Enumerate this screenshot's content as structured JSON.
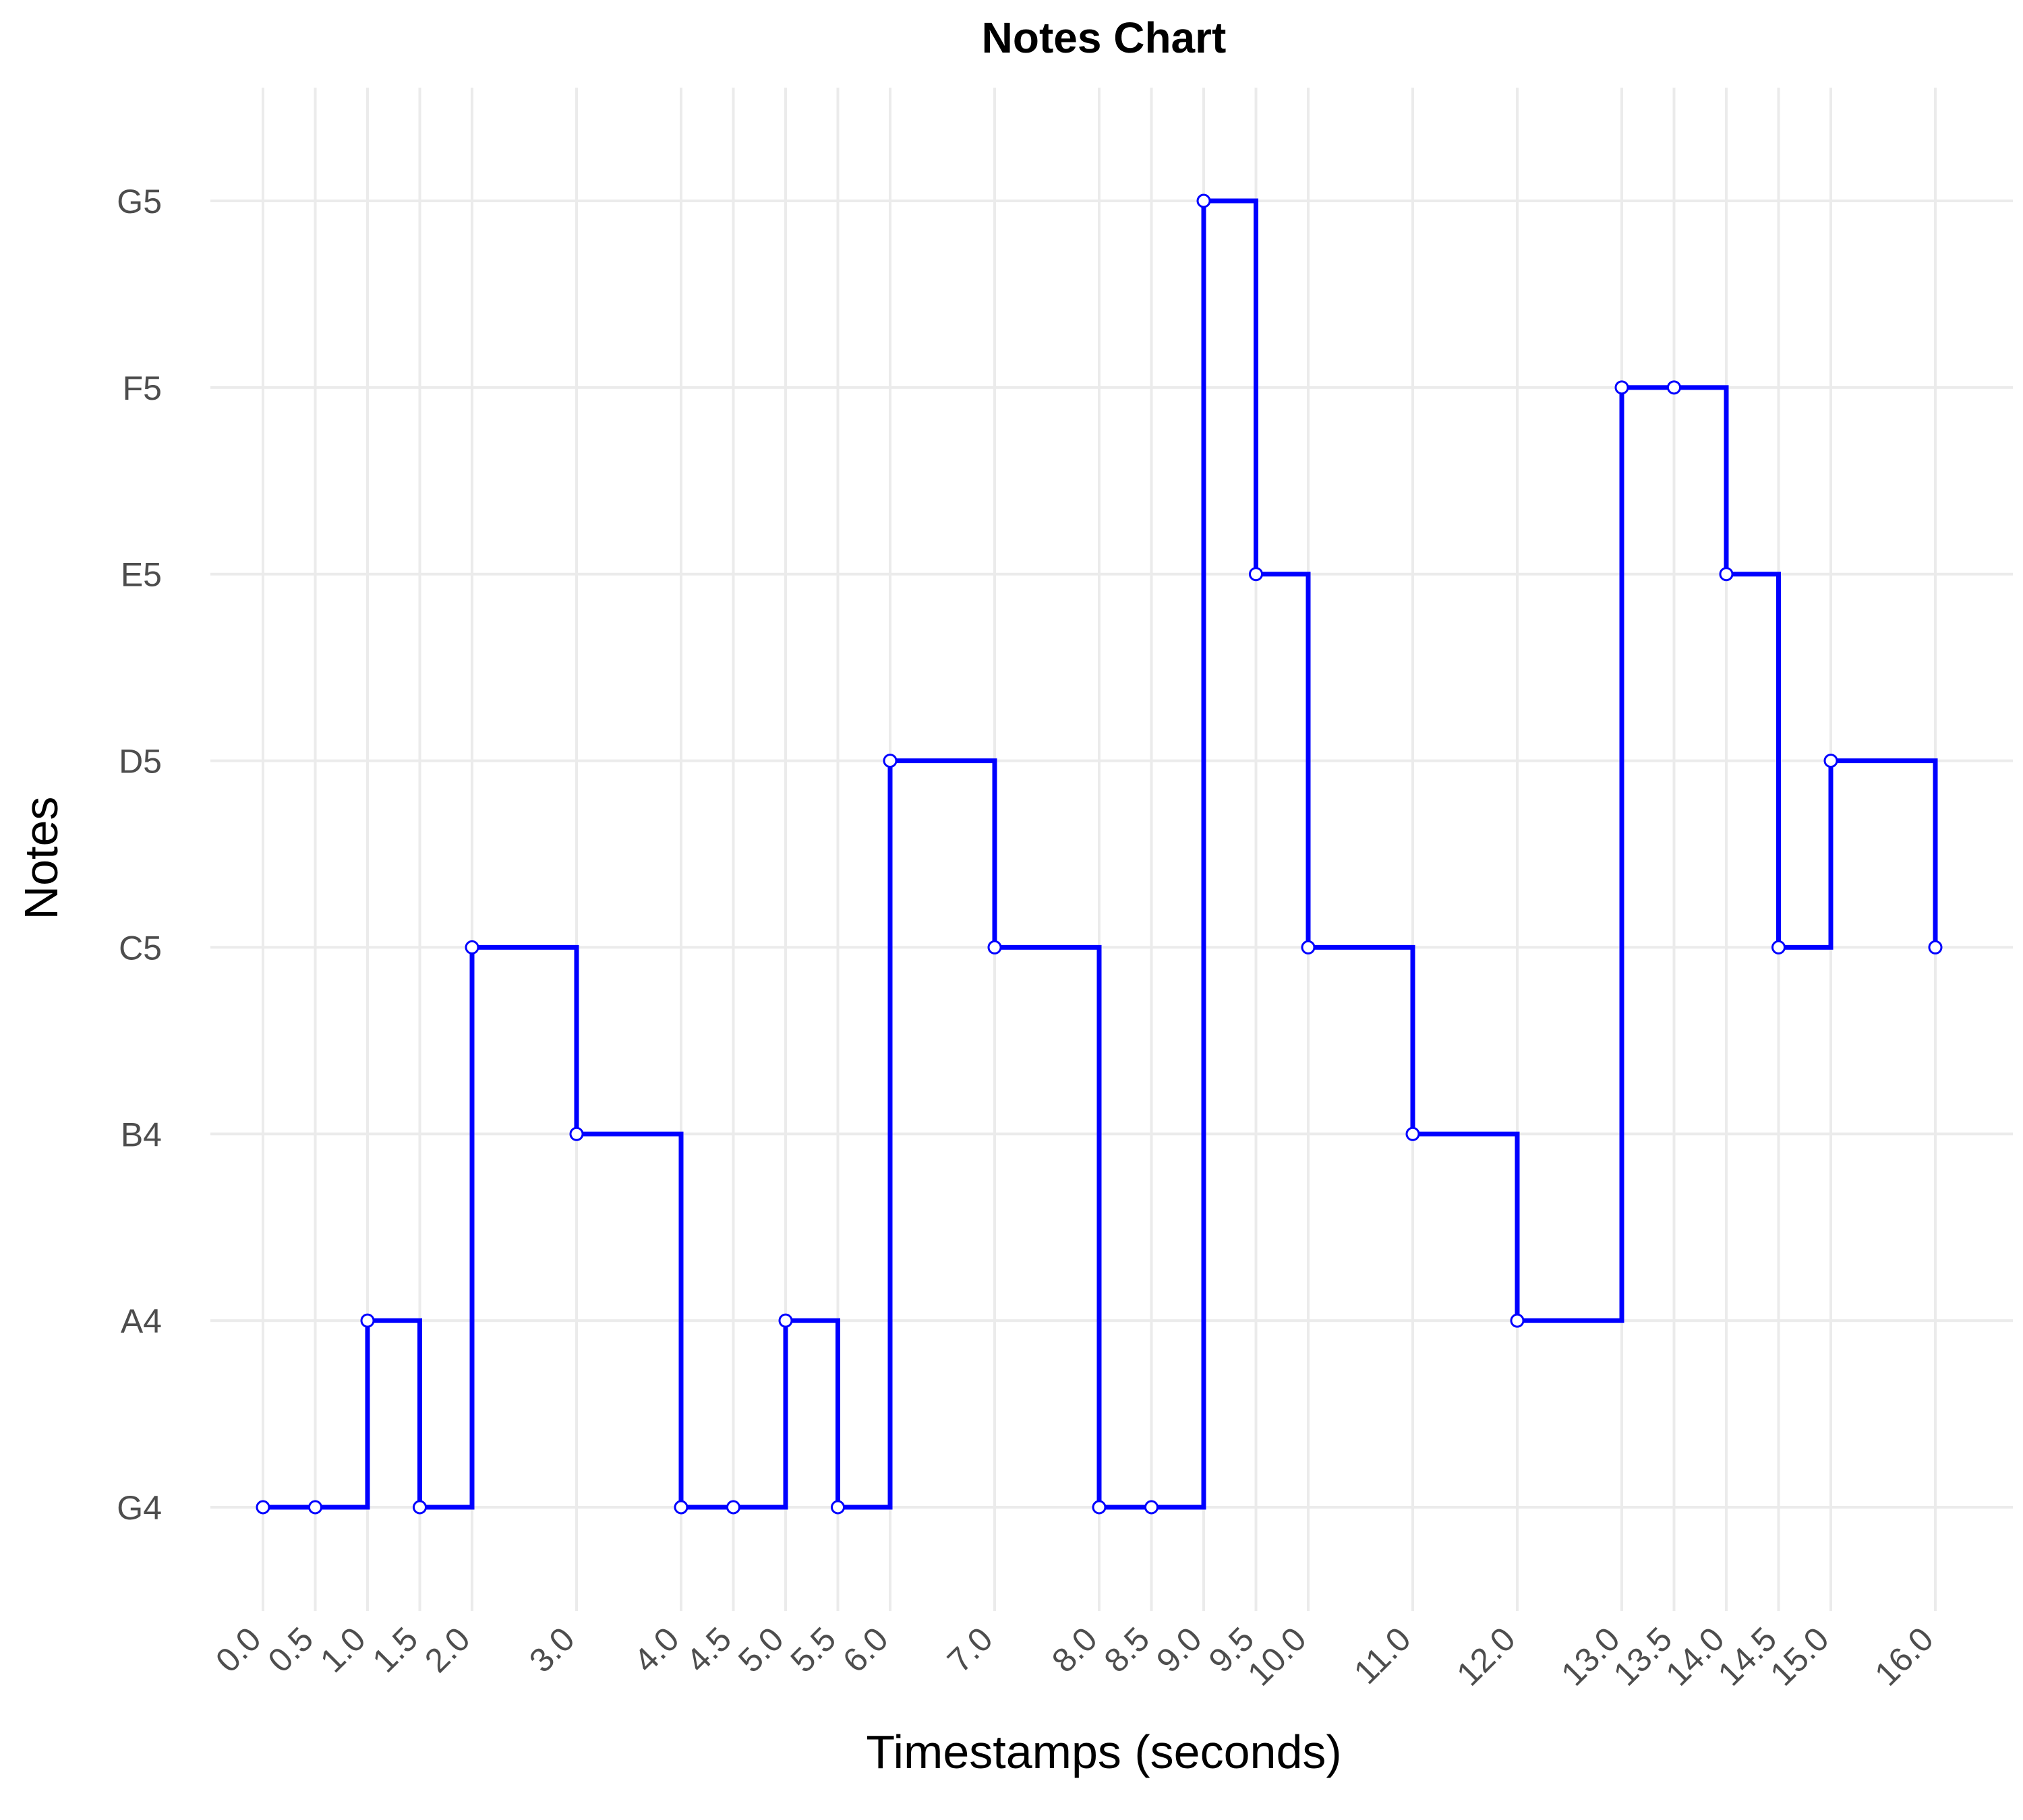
{
  "chart_data": {
    "type": "line",
    "step": "post",
    "title": "Notes Chart",
    "xlabel": "Timestamps (seconds)",
    "ylabel": "Notes",
    "x_ticks": [
      0.0,
      0.5,
      1.0,
      1.5,
      2.0,
      3.0,
      4.0,
      4.5,
      5.0,
      5.5,
      6.0,
      7.0,
      8.0,
      8.5,
      9.0,
      9.5,
      10.0,
      11.0,
      12.0,
      13.0,
      13.5,
      14.0,
      14.5,
      15.0,
      16.0
    ],
    "x_tick_labels": [
      "0.0",
      "0.5",
      "1.0",
      "1.5",
      "2.0",
      "3.0",
      "4.0",
      "4.5",
      "5.0",
      "5.5",
      "6.0",
      "7.0",
      "8.0",
      "8.5",
      "9.0",
      "9.5",
      "10.0",
      "11.0",
      "12.0",
      "13.0",
      "13.5",
      "14.0",
      "14.5",
      "15.0",
      "16.0"
    ],
    "y_categories": [
      "G4",
      "A4",
      "B4",
      "C5",
      "D5",
      "E5",
      "F5",
      "G5"
    ],
    "series": [
      {
        "color": "#0000ff",
        "x": [
          0.0,
          0.5,
          1.0,
          1.5,
          2.0,
          3.0,
          4.0,
          4.5,
          5.0,
          5.5,
          6.0,
          7.0,
          8.0,
          8.5,
          9.0,
          9.5,
          10.0,
          11.0,
          12.0,
          13.0,
          13.5,
          14.0,
          14.5,
          15.0,
          16.0
        ],
        "y": [
          "G4",
          "G4",
          "A4",
          "G4",
          "C5",
          "B4",
          "G4",
          "G4",
          "A4",
          "G4",
          "D5",
          "C5",
          "G4",
          "G4",
          "G5",
          "E5",
          "C5",
          "B4",
          "A4",
          "F5",
          "F5",
          "E5",
          "C5",
          "D5",
          "C5"
        ]
      }
    ],
    "xlim": [
      -0.8,
      16.8
    ],
    "grid": true,
    "legend": "none",
    "marker": "open-circle"
  }
}
